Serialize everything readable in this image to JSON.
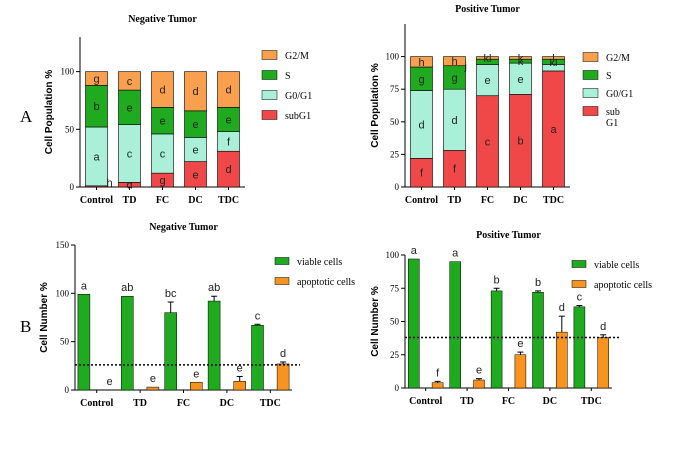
{
  "figure": {
    "panel_labels": [
      "A",
      "B"
    ]
  },
  "colors": {
    "G2M": "#f9a04e",
    "S": "#1faa1f",
    "G0G1": "#aaf0d8",
    "subG1": "#f04848",
    "viable": "#1faa1f",
    "apoptotic": "#f7931e",
    "axis": "#000000"
  },
  "chart_data": [
    {
      "id": "A-negative",
      "type": "bar",
      "stacked": true,
      "title": "Negative Tumor",
      "xlabel": "",
      "ylabel": "Cell Population %",
      "ylim": [
        0,
        130
      ],
      "yticks": [
        0,
        50,
        100
      ],
      "categories": [
        "Control",
        "TD",
        "FC",
        "DC",
        "TDC"
      ],
      "series": [
        {
          "name": "subG1",
          "values": [
            1,
            4,
            12,
            22,
            31
          ],
          "letters": [
            "",
            "d",
            "g",
            "e",
            "d"
          ]
        },
        {
          "name": "G0/G1",
          "values": [
            51,
            50,
            34,
            21,
            17
          ],
          "letters": [
            "a",
            "c",
            "c",
            "e",
            "f"
          ]
        },
        {
          "name": "S",
          "values": [
            36,
            30,
            23,
            23,
            21
          ],
          "letters": [
            "b",
            "e",
            "e",
            "e",
            "e"
          ]
        },
        {
          "name": "G2/M",
          "values": [
            12,
            16,
            31,
            34,
            31
          ],
          "letters": [
            "g",
            "c",
            "d",
            "d",
            "d"
          ]
        }
      ],
      "extra_letters": [
        {
          "category": "Control",
          "value": 4,
          "text": "h"
        }
      ],
      "legend": [
        "G2/M",
        "S",
        "G0/G1",
        "subG1"
      ],
      "legend_position": "right"
    },
    {
      "id": "A-positive",
      "type": "bar",
      "stacked": true,
      "title": "Positive Tumor",
      "xlabel": "",
      "ylabel": "Cell Population %",
      "ylim": [
        0,
        125
      ],
      "yticks": [
        0,
        25,
        50,
        75,
        100
      ],
      "categories": [
        "Control",
        "TD",
        "FC",
        "DC",
        "TDC"
      ],
      "series": [
        {
          "name": "sub G1",
          "values": [
            22,
            28,
            70,
            71,
            89
          ],
          "letters": [
            "f",
            "f",
            "c",
            "b",
            "a"
          ]
        },
        {
          "name": "G0/G1",
          "values": [
            52,
            47,
            24,
            24,
            5
          ],
          "letters": [
            "d",
            "d",
            "e",
            "e",
            ""
          ]
        },
        {
          "name": "S",
          "values": [
            18,
            18,
            4,
            3,
            4
          ],
          "letters": [
            "g",
            "g",
            "",
            "k",
            "kl"
          ]
        },
        {
          "name": "G2/M",
          "values": [
            8,
            7,
            2,
            2,
            2
          ],
          "letters": [
            "h",
            "h",
            "kl",
            "k",
            "l"
          ]
        }
      ],
      "extra_letters": [
        {
          "category": "TD",
          "value": 93,
          "text": "j"
        }
      ],
      "legend": [
        "G2/M",
        "S",
        "G0/G1",
        "sub G1"
      ],
      "legend_position": "right"
    },
    {
      "id": "B-negative",
      "type": "bar",
      "stacked": false,
      "title": "Negative Tumor",
      "xlabel": "",
      "ylabel": "Cell Number %",
      "ylim": [
        0,
        150
      ],
      "yticks": [
        0,
        50,
        100,
        150
      ],
      "reference_line": 26,
      "categories": [
        "Control",
        "TD",
        "FC",
        "DC",
        "TDC"
      ],
      "series": [
        {
          "name": "viable cells",
          "values": [
            99,
            97,
            80,
            92,
            67
          ],
          "errors": [
            0,
            0,
            11,
            5,
            1
          ],
          "letters": [
            "a",
            "ab",
            "bc",
            "ab",
            "c"
          ]
        },
        {
          "name": "apoptotic cells",
          "values": [
            0,
            3,
            8,
            9,
            27
          ],
          "errors": [
            0,
            0,
            0,
            5,
            2
          ],
          "letters": [
            "e",
            "e",
            "e",
            "e",
            "d"
          ]
        }
      ],
      "legend": [
        "viable cells",
        "apoptotic cells"
      ],
      "legend_position": "right"
    },
    {
      "id": "B-positive",
      "type": "bar",
      "stacked": false,
      "title": "Positive Tumor",
      "xlabel": "",
      "ylabel": "Cell Number %",
      "ylim": [
        0,
        100
      ],
      "yticks": [
        0,
        25,
        50,
        75,
        100
      ],
      "reference_line": 38,
      "categories": [
        "Control",
        "TD",
        "FC",
        "DC",
        "TDC"
      ],
      "series": [
        {
          "name": "viable cells",
          "values": [
            97,
            95,
            73,
            72,
            61
          ],
          "errors": [
            0,
            0,
            2,
            1,
            1
          ],
          "letters": [
            "a",
            "a",
            "b",
            "b",
            "c"
          ]
        },
        {
          "name": "apoptotic cells",
          "values": [
            4,
            6,
            25,
            42,
            38
          ],
          "errors": [
            1,
            1,
            2,
            12,
            2
          ],
          "letters": [
            "f",
            "e",
            "e",
            "d",
            "d"
          ]
        }
      ],
      "legend": [
        "viable cells",
        "apoptotic cells"
      ],
      "legend_position": "right"
    }
  ]
}
